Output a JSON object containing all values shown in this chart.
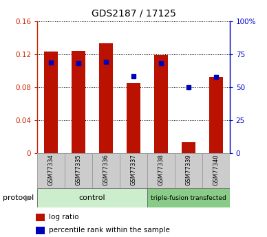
{
  "title": "GDS2187 / 17125",
  "samples": [
    "GSM77334",
    "GSM77335",
    "GSM77336",
    "GSM77337",
    "GSM77338",
    "GSM77339",
    "GSM77340"
  ],
  "log_ratio": [
    0.123,
    0.124,
    0.133,
    0.085,
    0.119,
    0.013,
    0.092
  ],
  "percentile_rank_left": [
    0.11,
    0.109,
    0.111,
    0.093,
    0.109,
    0.08,
    0.092
  ],
  "ylim_left": [
    0,
    0.16
  ],
  "ylim_right": [
    0,
    100
  ],
  "yticks_left": [
    0,
    0.04,
    0.08,
    0.12,
    0.16
  ],
  "yticks_right": [
    0,
    25,
    50,
    75,
    100
  ],
  "ytick_labels_left": [
    "0",
    "0.04",
    "0.08",
    "0.12",
    "0.16"
  ],
  "ytick_labels_right": [
    "0",
    "25",
    "50",
    "75",
    "100%"
  ],
  "bar_color": "#bb1100",
  "dot_color": "#0000bb",
  "left_axis_color": "#cc2200",
  "right_axis_color": "#0000cc",
  "control_color": "#cceecc",
  "triple_color": "#88cc88",
  "control_label": "control",
  "triple_label": "triple-fusion transfected",
  "control_range": [
    0,
    3
  ],
  "triple_range": [
    4,
    6
  ],
  "legend_items": [
    {
      "label": "log ratio",
      "color": "#bb1100"
    },
    {
      "label": "percentile rank within the sample",
      "color": "#0000bb"
    }
  ],
  "bar_width": 0.5,
  "sample_box_color": "#cccccc",
  "sample_box_edge": "#999999"
}
